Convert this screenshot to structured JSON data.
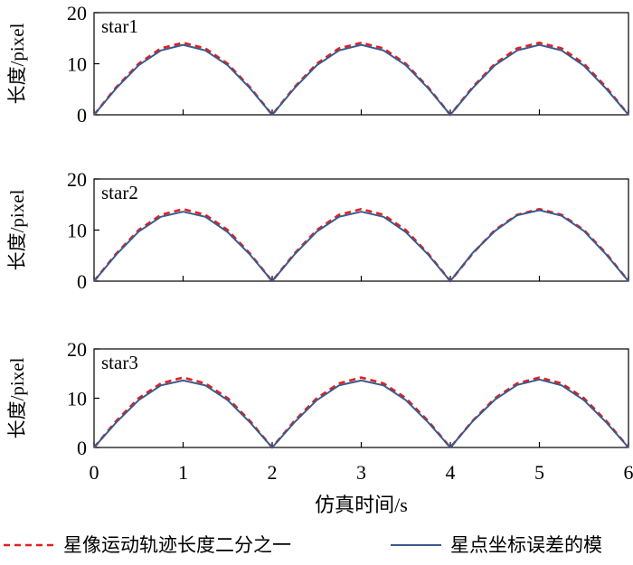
{
  "chart_data": {
    "type": "line",
    "xlabel": "仿真时间/s",
    "xlim": [
      0,
      6
    ],
    "x_ticks": [
      "0",
      "1",
      "2",
      "3",
      "4",
      "5",
      "6"
    ],
    "colors": {
      "dashed": "#e02020",
      "solid": "#3a5a8c"
    },
    "legend": {
      "placement": "bottom",
      "items": [
        {
          "label": "星像运动轨迹长度二分之一",
          "style": "dashed",
          "color": "#e02020"
        },
        {
          "label": "星点坐标误差的模",
          "style": "solid",
          "color": "#3a5a8c"
        }
      ]
    },
    "panels": [
      {
        "label": "star1",
        "ylabel": "长度/pixel",
        "ylim": [
          0,
          20
        ],
        "y_ticks": [
          "0",
          "10",
          "20"
        ],
        "x": [
          0,
          0.25,
          0.5,
          0.75,
          1,
          1.25,
          1.5,
          1.75,
          2,
          2.25,
          2.5,
          2.75,
          3,
          3.25,
          3.5,
          3.75,
          4,
          4.25,
          4.5,
          4.75,
          5,
          5.25,
          5.5,
          5.75,
          6
        ],
        "series": [
          {
            "name": "星像运动轨迹长度二分之一",
            "style": "dashed",
            "values": [
              0,
              5.4,
              10.0,
              13.0,
              14.1,
              13.0,
              10.0,
              5.4,
              0,
              5.4,
              10.0,
              13.0,
              14.1,
              13.0,
              10.0,
              5.4,
              0,
              5.4,
              10.0,
              13.0,
              14.1,
              13.0,
              10.0,
              5.4,
              0
            ]
          },
          {
            "name": "星点坐标误差的模",
            "style": "solid",
            "values": [
              0,
              5.2,
              9.7,
              12.6,
              13.7,
              12.6,
              9.7,
              5.2,
              0,
              5.2,
              9.7,
              12.6,
              13.7,
              12.6,
              9.7,
              5.2,
              0,
              5.2,
              9.7,
              12.6,
              13.7,
              12.6,
              9.6,
              5.1,
              0
            ]
          }
        ]
      },
      {
        "label": "star2",
        "ylabel": "长度/pixel",
        "ylim": [
          0,
          20
        ],
        "y_ticks": [
          "0",
          "10",
          "20"
        ],
        "x": [
          0,
          0.25,
          0.5,
          0.75,
          1,
          1.25,
          1.5,
          1.75,
          2,
          2.25,
          2.5,
          2.75,
          3,
          3.25,
          3.5,
          3.75,
          4,
          4.25,
          4.5,
          4.75,
          5,
          5.25,
          5.5,
          5.75,
          6
        ],
        "series": [
          {
            "name": "星像运动轨迹长度二分之一",
            "style": "dashed",
            "values": [
              0,
              5.4,
              10.0,
              13.0,
              14.1,
              13.0,
              10.0,
              5.4,
              0,
              5.4,
              10.0,
              13.0,
              14.1,
              13.0,
              10.0,
              5.4,
              0,
              5.4,
              10.0,
              13.0,
              14.1,
              13.0,
              10.0,
              5.4,
              0
            ]
          },
          {
            "name": "星点坐标误差的模",
            "style": "solid",
            "values": [
              0,
              5.2,
              9.7,
              12.6,
              13.6,
              12.6,
              9.6,
              5.2,
              0,
              5.2,
              9.7,
              12.6,
              13.6,
              12.6,
              9.6,
              5.2,
              0,
              5.5,
              9.8,
              12.9,
              13.9,
              12.8,
              9.8,
              5.2,
              0
            ]
          }
        ]
      },
      {
        "label": "star3",
        "ylabel": "长度/pixel",
        "ylim": [
          0,
          20
        ],
        "y_ticks": [
          "0",
          "10",
          "20"
        ],
        "x": [
          0,
          0.25,
          0.5,
          0.75,
          1,
          1.25,
          1.5,
          1.75,
          2,
          2.25,
          2.5,
          2.75,
          3,
          3.25,
          3.5,
          3.75,
          4,
          4.25,
          4.5,
          4.75,
          5,
          5.25,
          5.5,
          5.75,
          6
        ],
        "series": [
          {
            "name": "星像运动轨迹长度二分之一",
            "style": "dashed",
            "values": [
              0,
              5.4,
              10.0,
              13.0,
              14.2,
              13.0,
              10.0,
              5.4,
              0,
              5.4,
              10.0,
              13.0,
              14.2,
              13.0,
              10.0,
              5.4,
              0,
              5.4,
              10.0,
              13.0,
              14.2,
              13.0,
              10.0,
              5.4,
              0
            ]
          },
          {
            "name": "星点坐标误差的模",
            "style": "solid",
            "values": [
              0,
              5.1,
              9.6,
              12.6,
              13.6,
              12.6,
              9.6,
              5.1,
              0,
              5.1,
              9.6,
              12.6,
              13.6,
              12.6,
              9.6,
              5.1,
              0,
              5.3,
              9.7,
              12.7,
              13.8,
              12.6,
              9.6,
              5.1,
              0
            ]
          }
        ]
      }
    ]
  }
}
